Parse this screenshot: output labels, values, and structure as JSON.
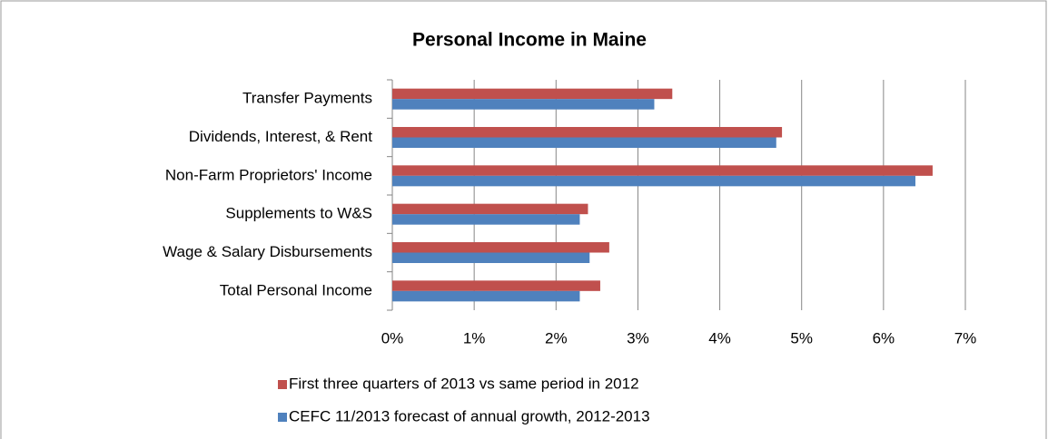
{
  "chart_data": {
    "type": "bar",
    "orientation": "horizontal",
    "title": "Personal Income in Maine",
    "categories": [
      "Transfer Payments",
      "Dividends, Interest, & Rent ",
      "Non-Farm Proprietors' Income",
      "Supplements to W&S ",
      "Wage & Salary Disbursements",
      "Total Personal Income"
    ],
    "series": [
      {
        "name": "First three quarters of 2013 vs same period in 2012",
        "color": "#c0504d",
        "values": [
          3.42,
          4.76,
          6.6,
          2.39,
          2.65,
          2.54
        ]
      },
      {
        "name": "CEFC 11/2013 forecast of annual growth, 2012-2013",
        "color": "#4f81bd",
        "values": [
          3.2,
          4.69,
          6.39,
          2.29,
          2.41,
          2.29
        ]
      }
    ],
    "xlim": [
      0,
      7
    ],
    "xticks": [
      {
        "value": 0,
        "label": "0%"
      },
      {
        "value": 1,
        "label": "1%"
      },
      {
        "value": 2,
        "label": "2%"
      },
      {
        "value": 3,
        "label": "3%"
      },
      {
        "value": 4,
        "label": "4%"
      },
      {
        "value": 5,
        "label": "5%"
      },
      {
        "value": 6,
        "label": "6%"
      },
      {
        "value": 7,
        "label": "7%"
      }
    ],
    "grid": true,
    "legend": "bottom"
  }
}
